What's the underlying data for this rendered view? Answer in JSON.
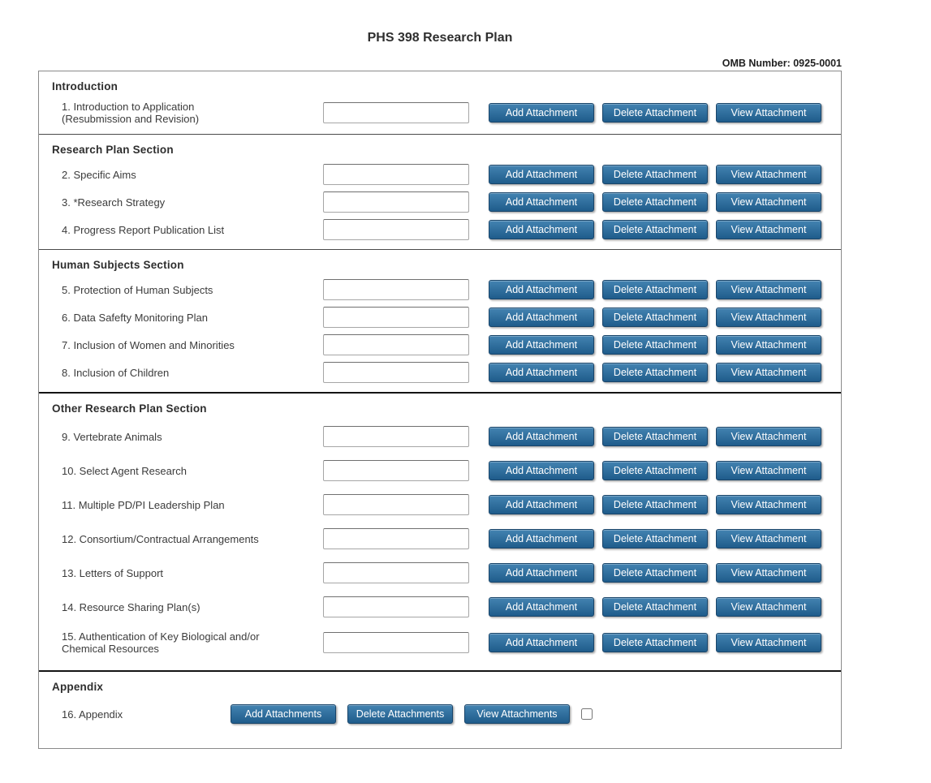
{
  "page": {
    "title": "PHS 398 Research Plan",
    "omb_label": "OMB Number: 0925-0001"
  },
  "colors": {
    "button_top": "#4383b1",
    "button_bottom": "#1f5c8b",
    "button_border": "#19456a",
    "button_text": "#ffffff"
  },
  "attachment_buttons": [
    {
      "name": "add-attachment-button",
      "label": "Add Attachment"
    },
    {
      "name": "delete-attachment-button",
      "label": "Delete Attachment"
    },
    {
      "name": "view-attachment-button",
      "label": "View Attachment"
    }
  ],
  "sections": [
    {
      "header": "Introduction",
      "divider": "thin",
      "items": [
        {
          "label": "1. Introduction to Application\n(Resubmission and Revision)",
          "input_value": ""
        }
      ]
    },
    {
      "header": "Research Plan Section",
      "divider": "thin",
      "items": [
        {
          "label": "2. Specific Aims",
          "input_value": ""
        },
        {
          "label": "3. *Research Strategy",
          "input_value": ""
        },
        {
          "label": "4. Progress Report Publication List",
          "input_value": ""
        }
      ]
    },
    {
      "header": "Human Subjects Section",
      "divider": "thick",
      "items": [
        {
          "label": "5. Protection of Human Subjects",
          "input_value": ""
        },
        {
          "label": "6. Data Safefty Monitoring Plan",
          "input_value": ""
        },
        {
          "label": "7. Inclusion of Women and Minorities",
          "input_value": ""
        },
        {
          "label": "8. Inclusion of Children",
          "input_value": ""
        }
      ]
    },
    {
      "header": "Other Research Plan Section",
      "divider": "thick",
      "wide_gap": true,
      "items": [
        {
          "label": "9. Vertebrate Animals",
          "input_value": ""
        },
        {
          "label": "10. Select Agent Research",
          "input_value": ""
        },
        {
          "label": "11. Multiple PD/PI Leadership Plan",
          "input_value": ""
        },
        {
          "label": "12. Consortium/Contractual Arrangements",
          "input_value": ""
        },
        {
          "label": "13. Letters of Support",
          "input_value": ""
        },
        {
          "label": "14. Resource Sharing Plan(s)",
          "input_value": ""
        },
        {
          "label": "15. Authentication of Key Biological and/or\nChemical Resources",
          "input_value": ""
        }
      ]
    },
    {
      "header": "Appendix",
      "divider": "none",
      "appendix": true,
      "items": [
        {
          "label": "16. Appendix",
          "buttons": [
            {
              "name": "add-attachments-button",
              "label": "Add Attachments"
            },
            {
              "name": "delete-attachments-button",
              "label": "Delete Attachments"
            },
            {
              "name": "view-attachments-button",
              "label": "View Attachments"
            }
          ],
          "checkbox_checked": false
        }
      ]
    }
  ]
}
